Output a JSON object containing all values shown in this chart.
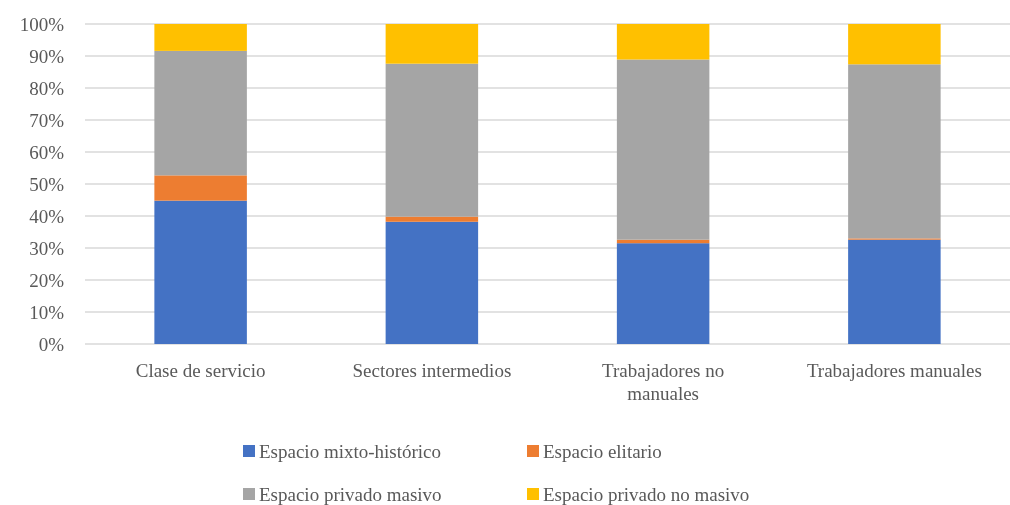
{
  "chart_data": {
    "type": "bar",
    "stacked": true,
    "categories": [
      "Clase de servicio",
      "Sectores intermedios",
      "Trabajadores no manuales",
      "Trabajadores manuales"
    ],
    "series": [
      {
        "name": "Espacio mixto-histórico",
        "color": "#4472c4",
        "values": [
          44.8,
          38.2,
          31.5,
          32.6
        ]
      },
      {
        "name": "Espacio elitario",
        "color": "#ed7d31",
        "values": [
          7.9,
          1.6,
          1.1,
          0.4
        ]
      },
      {
        "name": "Espacio privado masivo",
        "color": "#a5a5a5",
        "values": [
          38.9,
          47.8,
          56.3,
          54.4
        ]
      },
      {
        "name": "Espacio privado no masivo",
        "color": "#ffc000",
        "values": [
          8.4,
          12.4,
          11.1,
          12.6
        ]
      }
    ],
    "ylim": [
      0,
      100
    ],
    "yticks": [
      {
        "value": 0,
        "label": "0%"
      },
      {
        "value": 10,
        "label": "10%"
      },
      {
        "value": 20,
        "label": "20%"
      },
      {
        "value": 30,
        "label": "30%"
      },
      {
        "value": 40,
        "label": "40%"
      },
      {
        "value": 50,
        "label": "50%"
      },
      {
        "value": 60,
        "label": "60%"
      },
      {
        "value": 70,
        "label": "70%"
      },
      {
        "value": 80,
        "label": "80%"
      },
      {
        "value": 90,
        "label": "90%"
      },
      {
        "value": 100,
        "label": "100%"
      }
    ],
    "grid": "y",
    "legend": "bottom"
  }
}
